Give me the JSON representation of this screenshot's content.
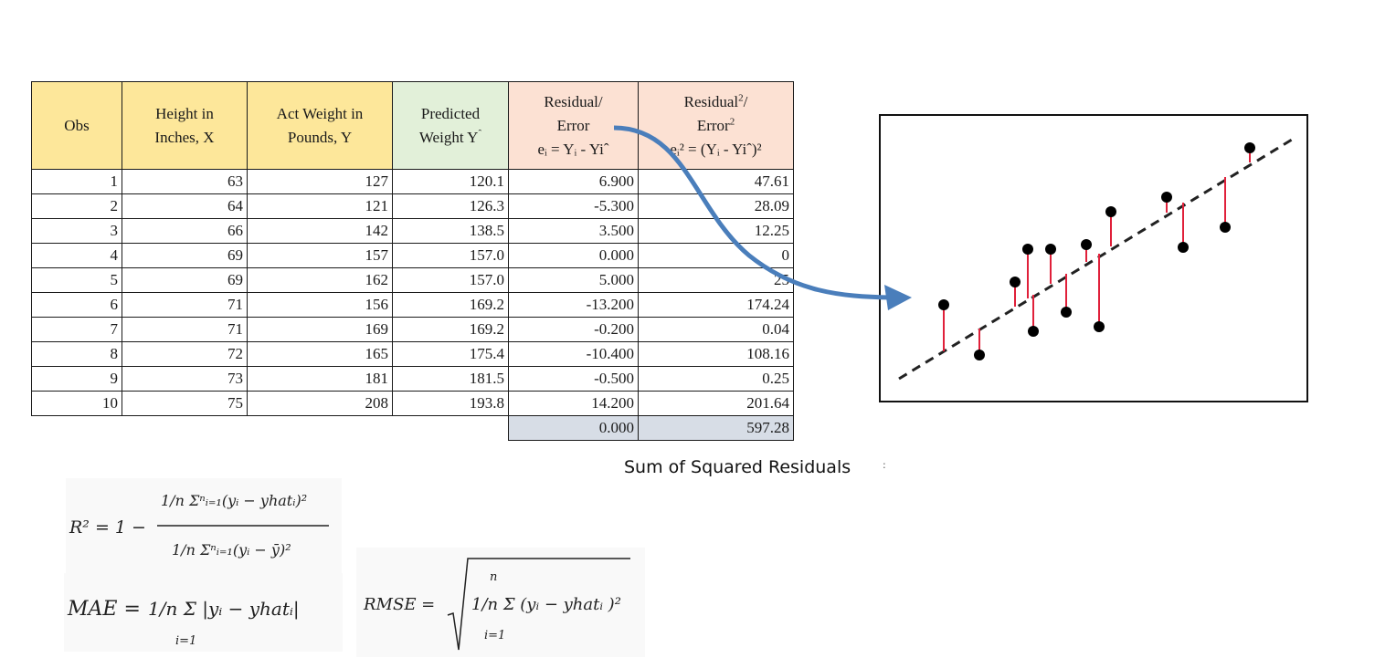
{
  "table": {
    "headers": {
      "obs": "Obs",
      "height_l1": "Height in",
      "height_l2": "Inches, X",
      "actw_l1": "Act Weight in",
      "actw_l2": "Pounds, Y",
      "pred_l1": "Predicted",
      "pred_l2": "Weight Y",
      "resid_l1": "Residual/",
      "resid_l2": "Error",
      "resid_formula": "eᵢ = Yᵢ - Yiˆ",
      "sq_l1": "Residual",
      "sq_l1_sup": "2",
      "sq_l1_tail": "/",
      "sq_l2": "Error",
      "sq_l2_sup": "2",
      "sq_formula": "eᵢ² = (Yᵢ - Yiˆ)²"
    },
    "rows": [
      {
        "obs": "1",
        "x": "63",
        "y": "127",
        "yhat": "120.1",
        "e": "6.900",
        "e2": "47.61"
      },
      {
        "obs": "2",
        "x": "64",
        "y": "121",
        "yhat": "126.3",
        "e": "-5.300",
        "e2": "28.09"
      },
      {
        "obs": "3",
        "x": "66",
        "y": "142",
        "yhat": "138.5",
        "e": "3.500",
        "e2": "12.25"
      },
      {
        "obs": "4",
        "x": "69",
        "y": "157",
        "yhat": "157.0",
        "e": "0.000",
        "e2": "0"
      },
      {
        "obs": "5",
        "x": "69",
        "y": "162",
        "yhat": "157.0",
        "e": "5.000",
        "e2": "25"
      },
      {
        "obs": "6",
        "x": "71",
        "y": "156",
        "yhat": "169.2",
        "e": "-13.200",
        "e2": "174.24"
      },
      {
        "obs": "7",
        "x": "71",
        "y": "169",
        "yhat": "169.2",
        "e": "-0.200",
        "e2": "0.04"
      },
      {
        "obs": "8",
        "x": "72",
        "y": "165",
        "yhat": "175.4",
        "e": "-10.400",
        "e2": "108.16"
      },
      {
        "obs": "9",
        "x": "73",
        "y": "181",
        "yhat": "181.5",
        "e": "-0.500",
        "e2": "0.25"
      },
      {
        "obs": "10",
        "x": "75",
        "y": "208",
        "yhat": "193.8",
        "e": "14.200",
        "e2": "201.64"
      }
    ],
    "sum_residual": "0.000",
    "sum_squared": "597.28"
  },
  "caption": "Sum of Squared Residuals",
  "formulas": {
    "r2_lhs": "R² = 1 −",
    "mae_lhs": "MAE =",
    "rmse_lhs": "RMSE ="
  },
  "colors": {
    "header_yellow": "#fde79a",
    "header_green": "#e2f0d9",
    "header_pink": "#fce1d3",
    "sum_fill": "#d7dde6",
    "arrow_blue": "#4a7ebb",
    "residual_red": "#e0203a"
  }
}
